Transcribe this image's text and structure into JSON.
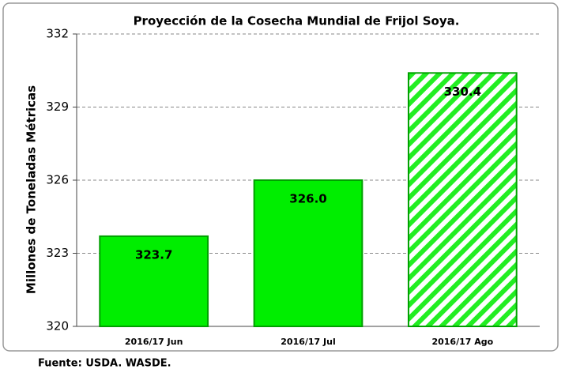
{
  "chart_data": {
    "type": "bar",
    "title": "Proyección de la Cosecha Mundial de Frijol Soya.",
    "y_label": "Millones  de  Toneladas Métricas",
    "categories": [
      "2016/17 Jun",
      "2016/17 Jul",
      "2016/17 Ago"
    ],
    "values": [
      323.7,
      326.0,
      330.4
    ],
    "value_labels": [
      "323.7",
      "326.0",
      "330.4"
    ],
    "hatched": [
      false,
      false,
      true
    ],
    "color": "#00ee00",
    "ylim": [
      320,
      332
    ],
    "yticks": [
      320,
      323,
      326,
      329,
      332
    ],
    "grid": true,
    "source": "Fuente: USDA.  WASDE."
  }
}
